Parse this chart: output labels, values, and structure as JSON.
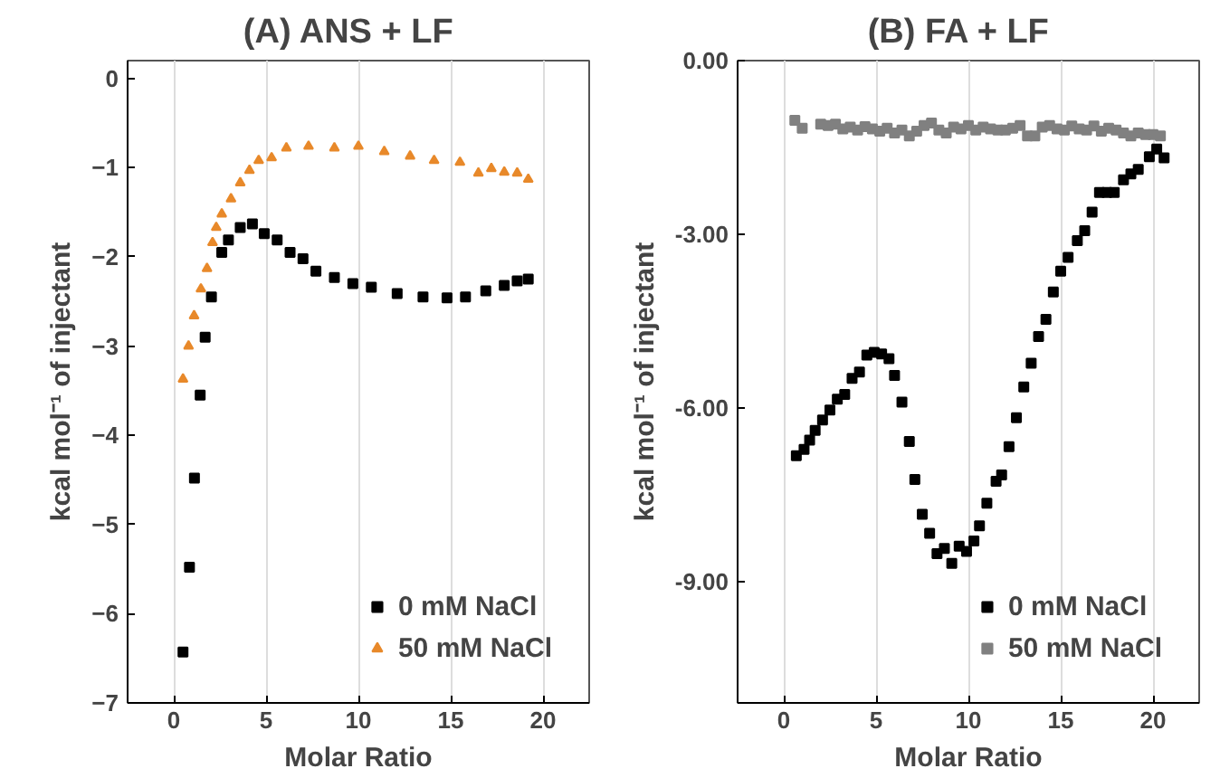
{
  "chart_data": [
    {
      "type": "scatter",
      "title": "(A)   ANS + LF",
      "xlabel": "Molar Ratio",
      "ylabel": "kcal mol⁻¹ of injectant",
      "xlim": [
        -2.5,
        22.5
      ],
      "xticks": [
        0,
        5,
        10,
        15,
        20
      ],
      "ylim": [
        -7,
        0.2
      ],
      "yticks": [
        0,
        -1,
        -2,
        -3,
        -4,
        -5,
        -6,
        -7
      ],
      "grid": "x",
      "legend": "bottom right",
      "series": [
        {
          "name": "0 mM NaCl",
          "color": "#000000",
          "marker": "square",
          "x": [
            0.5,
            0.85,
            1.12,
            1.43,
            1.7,
            2.04,
            2.6,
            2.96,
            3.6,
            4.26,
            4.9,
            5.6,
            6.3,
            7.0,
            7.7,
            8.7,
            9.7,
            10.7,
            12.1,
            13.5,
            14.8,
            15.8,
            16.9,
            17.9,
            18.6,
            19.2
          ],
          "values": [
            -6.43,
            -5.48,
            -4.48,
            -3.55,
            -2.9,
            -2.45,
            -1.95,
            -1.81,
            -1.67,
            -1.63,
            -1.74,
            -1.81,
            -1.95,
            -2.02,
            -2.16,
            -2.23,
            -2.3,
            -2.34,
            -2.41,
            -2.45,
            -2.46,
            -2.45,
            -2.38,
            -2.32,
            -2.27,
            -2.25
          ]
        },
        {
          "name": "50 mM NaCl",
          "color": "#e8892a",
          "marker": "triangle",
          "x": [
            0.5,
            0.8,
            1.1,
            1.47,
            1.8,
            2.1,
            2.3,
            2.6,
            3.1,
            3.6,
            4.1,
            4.6,
            5.3,
            6.1,
            7.3,
            8.7,
            10.0,
            11.4,
            12.8,
            14.1,
            15.5,
            16.5,
            17.2,
            17.9,
            18.6,
            19.2
          ],
          "values": [
            -3.37,
            -3.0,
            -2.66,
            -2.36,
            -2.13,
            -1.84,
            -1.67,
            -1.52,
            -1.35,
            -1.17,
            -1.03,
            -0.92,
            -0.89,
            -0.78,
            -0.76,
            -0.78,
            -0.76,
            -0.82,
            -0.87,
            -0.92,
            -0.94,
            -1.06,
            -1.01,
            -1.05,
            -1.06,
            -1.13
          ]
        }
      ]
    },
    {
      "type": "scatter",
      "title": "(B)   FA + LF",
      "xlabel": "Molar Ratio",
      "ylabel": "kcal mol⁻¹ of injectant",
      "xlim": [
        -2.5,
        22.5
      ],
      "xticks": [
        0,
        5,
        10,
        15,
        20
      ],
      "ylim": [
        -11.1,
        0
      ],
      "yticks": [
        {
          "value": 0,
          "label": "0.00"
        },
        {
          "value": -3,
          "label": "-3.00"
        },
        {
          "value": -6,
          "label": "-6.00"
        },
        {
          "value": -9,
          "label": "-9.00"
        }
      ],
      "grid": "x",
      "legend": "bottom right",
      "series": [
        {
          "name": "0 mM NaCl",
          "color": "#000000",
          "marker": "square",
          "x": [
            0.68,
            1.1,
            1.4,
            1.7,
            2.1,
            2.5,
            2.9,
            3.3,
            3.7,
            4.1,
            4.5,
            4.9,
            5.3,
            5.7,
            6.0,
            6.4,
            6.8,
            7.1,
            7.5,
            7.9,
            8.3,
            8.7,
            9.1,
            9.5,
            9.9,
            10.3,
            10.6,
            11.0,
            11.5,
            11.8,
            12.2,
            12.6,
            13.0,
            13.4,
            13.8,
            14.2,
            14.6,
            15.0,
            15.4,
            15.9,
            16.3,
            16.7,
            17.1,
            17.5,
            17.9,
            18.4,
            18.8,
            19.2,
            19.8,
            20.2,
            20.6
          ],
          "values": [
            -6.83,
            -6.72,
            -6.56,
            -6.39,
            -6.21,
            -6.04,
            -5.85,
            -5.77,
            -5.49,
            -5.38,
            -5.09,
            -5.04,
            -5.07,
            -5.15,
            -5.44,
            -5.9,
            -6.58,
            -7.24,
            -7.84,
            -8.17,
            -8.52,
            -8.43,
            -8.69,
            -8.39,
            -8.48,
            -8.3,
            -8.04,
            -7.65,
            -7.27,
            -7.16,
            -6.67,
            -6.17,
            -5.64,
            -5.23,
            -4.77,
            -4.47,
            -4.0,
            -3.64,
            -3.4,
            -3.11,
            -2.94,
            -2.62,
            -2.28,
            -2.28,
            -2.28,
            -2.06,
            -1.96,
            -1.88,
            -1.66,
            -1.53,
            -1.68
          ]
        },
        {
          "name": "50 mM NaCl",
          "color": "#808080",
          "marker": "square",
          "x": [
            0.6,
            1.0,
            2.0,
            2.4,
            2.8,
            3.2,
            3.6,
            4.0,
            4.4,
            4.8,
            5.2,
            5.6,
            6.0,
            6.4,
            6.8,
            7.2,
            7.6,
            8.0,
            8.4,
            8.8,
            9.2,
            9.6,
            10.0,
            10.4,
            10.8,
            11.2,
            11.6,
            12.0,
            12.4,
            12.8,
            13.2,
            13.6,
            14.0,
            14.4,
            14.8,
            15.2,
            15.6,
            16.0,
            16.4,
            16.8,
            17.2,
            17.6,
            18.0,
            18.4,
            18.8,
            19.2,
            19.6,
            20.0,
            20.4
          ],
          "values": [
            -1.03,
            -1.17,
            -1.1,
            -1.12,
            -1.1,
            -1.18,
            -1.15,
            -1.2,
            -1.14,
            -1.18,
            -1.22,
            -1.17,
            -1.25,
            -1.2,
            -1.3,
            -1.22,
            -1.12,
            -1.08,
            -1.2,
            -1.25,
            -1.15,
            -1.18,
            -1.12,
            -1.2,
            -1.15,
            -1.18,
            -1.2,
            -1.2,
            -1.17,
            -1.12,
            -1.3,
            -1.3,
            -1.15,
            -1.12,
            -1.18,
            -1.2,
            -1.13,
            -1.18,
            -1.2,
            -1.13,
            -1.22,
            -1.17,
            -1.2,
            -1.25,
            -1.3,
            -1.25,
            -1.28,
            -1.28,
            -1.3
          ]
        }
      ]
    }
  ]
}
